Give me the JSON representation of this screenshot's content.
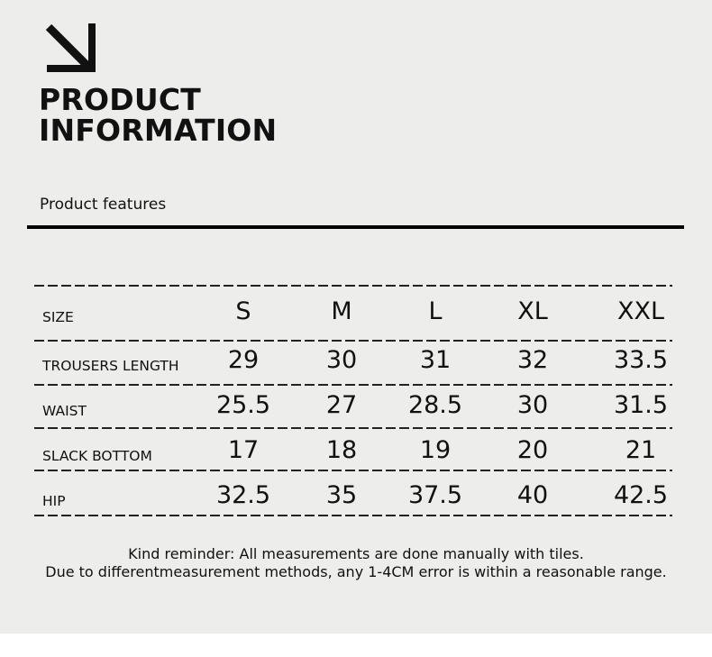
{
  "header": {
    "title_line1": "PRODUCT",
    "title_line2": "INFORMATION",
    "subtitle": "Product features",
    "icon": "arrow-down-right-icon"
  },
  "table": {
    "header": {
      "label": "SIZE",
      "sizes": [
        "S",
        "M",
        "L",
        "XL",
        "XXL"
      ]
    },
    "rows": [
      {
        "label": "TROUSERS LENGTH",
        "values": [
          "29",
          "30",
          "31",
          "32",
          "33.5"
        ]
      },
      {
        "label": "WAIST",
        "values": [
          "25.5",
          "27",
          "28.5",
          "30",
          "31.5"
        ]
      },
      {
        "label": "SLACK BOTTOM",
        "values": [
          "17",
          "18",
          "19",
          "20",
          "21"
        ]
      },
      {
        "label": "HIP",
        "values": [
          "32.5",
          "35",
          "37.5",
          "40",
          "42.5"
        ]
      }
    ]
  },
  "note": {
    "line1": "Kind reminder: All measurements are done manually with tiles.",
    "line2": "Due to differentmeasurement methods, any 1-4CM error is within a reasonable range."
  }
}
